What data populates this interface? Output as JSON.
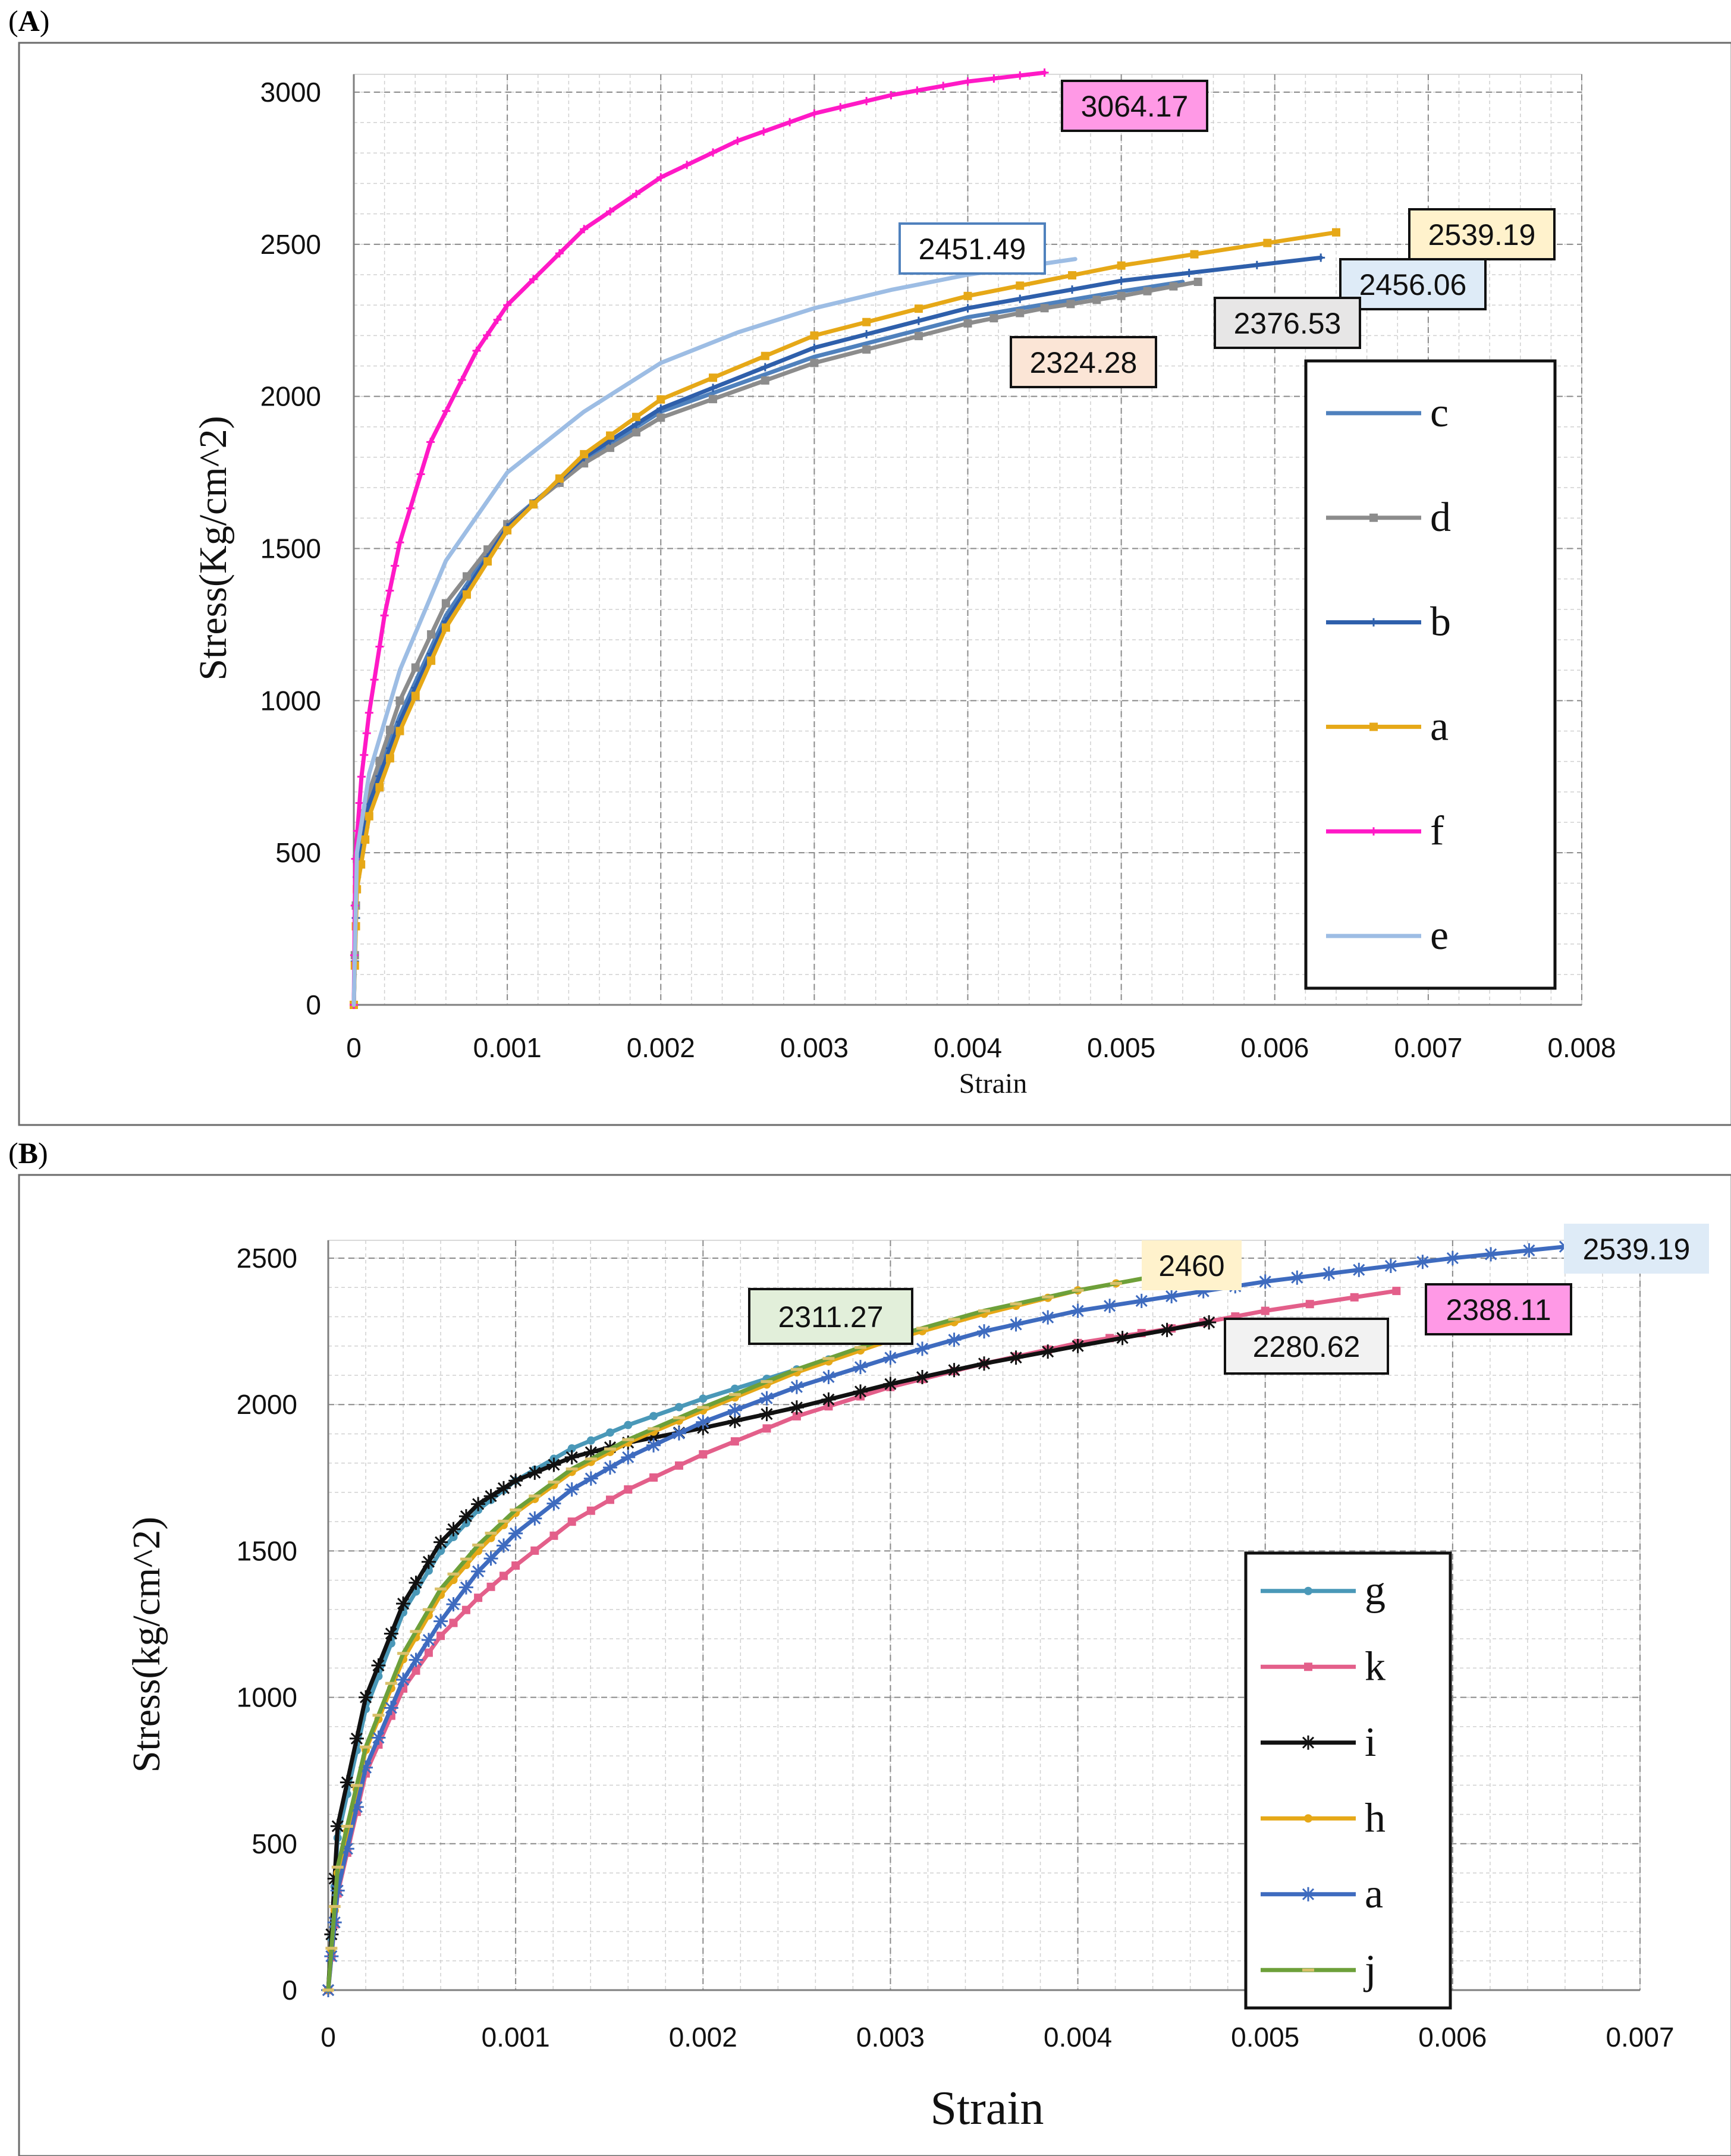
{
  "chart_data": [
    {
      "panel_label": "A",
      "type": "line",
      "xlabel": "Strain",
      "ylabel": "Stress(Kg/cm^2)",
      "xlim": [
        0,
        0.008
      ],
      "ylim": [
        0,
        3000
      ],
      "xticks": [
        "0",
        "0.001",
        "0.002",
        "0.003",
        "0.004",
        "0.005",
        "0.006",
        "0.007",
        "0.008"
      ],
      "yticks": [
        "0",
        "500",
        "1000",
        "1500",
        "2000",
        "2500",
        "3000"
      ],
      "xtick_values": [
        0,
        0.001,
        0.002,
        0.003,
        0.004,
        0.005,
        0.006,
        0.007,
        0.008
      ],
      "ytick_values": [
        0,
        500,
        1000,
        1500,
        2000,
        2500,
        3000
      ],
      "grid": true,
      "legend_position": "right",
      "legend": [
        "c",
        "d",
        "b",
        "a",
        "f",
        "e"
      ],
      "series": [
        {
          "name": "c",
          "color": "#4f81bd",
          "marker": "none",
          "final_stress": 2376.53,
          "final_strain": 0.0054,
          "x": [
            0,
            2e-05,
            0.0001,
            0.0003,
            0.0006,
            0.001,
            0.0015,
            0.002,
            0.003,
            0.004,
            0.005,
            0.0054
          ],
          "y": [
            0,
            450,
            680,
            950,
            1280,
            1580,
            1790,
            1950,
            2130,
            2260,
            2345,
            2376.53
          ]
        },
        {
          "name": "d",
          "color": "#8c8c8c",
          "marker": "square",
          "final_stress": 2376.53,
          "final_strain": 0.0055,
          "x": [
            0,
            2e-05,
            0.0001,
            0.0003,
            0.0006,
            0.001,
            0.0015,
            0.002,
            0.003,
            0.004,
            0.0045,
            0.005,
            0.0055
          ],
          "y": [
            0,
            480,
            700,
            1000,
            1320,
            1580,
            1780,
            1930,
            2110,
            2240,
            2290,
            2330,
            2376.53
          ]
        },
        {
          "name": "b",
          "color": "#2e5fab",
          "marker": "plus",
          "final_stress": 2456.06,
          "final_strain": 0.0063,
          "x": [
            0,
            2e-05,
            0.0001,
            0.0003,
            0.0006,
            0.001,
            0.0015,
            0.002,
            0.003,
            0.004,
            0.005,
            0.0063
          ],
          "y": [
            0,
            420,
            660,
            930,
            1260,
            1570,
            1800,
            1960,
            2160,
            2290,
            2380,
            2456.06
          ]
        },
        {
          "name": "a",
          "color": "#e6a817",
          "marker": "square",
          "final_stress": 2539.19,
          "final_strain": 0.0064,
          "x": [
            0,
            2e-05,
            0.0001,
            0.0003,
            0.0006,
            0.001,
            0.0015,
            0.002,
            0.003,
            0.004,
            0.005,
            0.0064
          ],
          "y": [
            0,
            380,
            620,
            900,
            1240,
            1560,
            1810,
            1990,
            2200,
            2330,
            2430,
            2539.19
          ]
        },
        {
          "name": "f",
          "color": "#ff19c6",
          "marker": "plus",
          "final_stress": 3064.17,
          "final_strain": 0.0045,
          "x": [
            0,
            1e-05,
            5e-05,
            0.0001,
            0.0002,
            0.0003,
            0.0005,
            0.0008,
            0.001,
            0.0015,
            0.002,
            0.0025,
            0.003,
            0.0035,
            0.004,
            0.0045
          ],
          "y": [
            0,
            480,
            750,
            960,
            1280,
            1520,
            1850,
            2150,
            2300,
            2550,
            2720,
            2840,
            2930,
            2990,
            3035,
            3064.17
          ]
        },
        {
          "name": "e",
          "color": "#9dbde4",
          "marker": "none",
          "final_stress": 2451.49,
          "final_strain": 0.0047,
          "x": [
            0,
            2e-05,
            0.0001,
            0.0003,
            0.0006,
            0.001,
            0.0015,
            0.002,
            0.0025,
            0.003,
            0.0035,
            0.004,
            0.0047
          ],
          "y": [
            0,
            500,
            760,
            1100,
            1460,
            1750,
            1950,
            2110,
            2210,
            2290,
            2350,
            2400,
            2451.49
          ]
        }
      ],
      "annotations": [
        {
          "text": "3064.17",
          "fill": "#ff99e6",
          "border": "#111111",
          "anchor_x": 0.0047,
          "anchor_y": 3060
        },
        {
          "text": "2539.19",
          "fill": "#fff2cc",
          "border": "#111111",
          "anchor_x": 0.0069,
          "anchor_y": 2620
        },
        {
          "text": "2451.49",
          "fill": "#ffffff",
          "border": "#4f81bd",
          "anchor_x": 0.0036,
          "anchor_y": 2560
        },
        {
          "text": "2456.06",
          "fill": "#deebf7",
          "border": "#111111",
          "anchor_x": 0.0065,
          "anchor_y": 2440
        },
        {
          "text": "2376.53",
          "fill": "#e7e6e6",
          "border": "#111111",
          "anchor_x": 0.0056,
          "anchor_y": 2300
        },
        {
          "text": "2324.28",
          "fill": "#fbe5d6",
          "border": "#111111",
          "anchor_x": 0.0041,
          "anchor_y": 2180
        }
      ]
    },
    {
      "panel_label": "B",
      "type": "line",
      "xlabel": "Strain",
      "ylabel": "Stress(kg/cm^2)",
      "xlim": [
        0,
        0.007
      ],
      "ylim": [
        0,
        2500
      ],
      "xticks": [
        "0",
        "0.001",
        "0.002",
        "0.003",
        "0.004",
        "0.005",
        "0.006",
        "0.007"
      ],
      "yticks": [
        "0",
        "500",
        "1000",
        "1500",
        "2000",
        "2500"
      ],
      "xtick_values": [
        0,
        0.001,
        0.002,
        0.003,
        0.004,
        0.005,
        0.006,
        0.007
      ],
      "ytick_values": [
        0,
        500,
        1000,
        1500,
        2000,
        2500
      ],
      "grid": true,
      "legend_position": "bottom-right",
      "legend": [
        "g",
        "k",
        "i",
        "h",
        "a",
        "j"
      ],
      "series": [
        {
          "name": "g",
          "color": "#4a98b8",
          "marker": "dot",
          "final_stress": 2311.27,
          "final_strain": 0.0035,
          "x": [
            0,
            5e-05,
            0.0002,
            0.0004,
            0.0006,
            0.0008,
            0.001,
            0.0013,
            0.0016,
            0.002,
            0.0025,
            0.003,
            0.0035
          ],
          "y": [
            0,
            520,
            960,
            1290,
            1500,
            1640,
            1740,
            1850,
            1930,
            2020,
            2120,
            2220,
            2311.27
          ]
        },
        {
          "name": "k",
          "color": "#e35f8a",
          "marker": "square",
          "final_stress": 2388.11,
          "final_strain": 0.0057,
          "x": [
            0,
            5e-05,
            0.0002,
            0.0004,
            0.0006,
            0.0008,
            0.001,
            0.0013,
            0.0016,
            0.002,
            0.0025,
            0.003,
            0.0035,
            0.004,
            0.0045,
            0.005,
            0.0057
          ],
          "y": [
            0,
            330,
            740,
            1030,
            1210,
            1340,
            1450,
            1600,
            1710,
            1830,
            1960,
            2060,
            2140,
            2210,
            2260,
            2320,
            2388.11
          ]
        },
        {
          "name": "i",
          "color": "#111111",
          "marker": "star",
          "final_stress": 2280.62,
          "final_strain": 0.0047,
          "x": [
            0,
            5e-05,
            0.0002,
            0.0004,
            0.0006,
            0.0008,
            0.001,
            0.0013,
            0.0016,
            0.002,
            0.0025,
            0.003,
            0.0035,
            0.004,
            0.0047
          ],
          "y": [
            0,
            560,
            1000,
            1320,
            1530,
            1660,
            1740,
            1820,
            1870,
            1920,
            1990,
            2070,
            2140,
            2200,
            2280.62
          ]
        },
        {
          "name": "h",
          "color": "#e6a817",
          "marker": "dot",
          "final_stress": 2460,
          "final_strain": 0.0046,
          "x": [
            0,
            5e-05,
            0.0002,
            0.0004,
            0.0006,
            0.0008,
            0.001,
            0.0013,
            0.0016,
            0.002,
            0.0025,
            0.003,
            0.0035,
            0.004,
            0.0046
          ],
          "y": [
            0,
            400,
            820,
            1130,
            1350,
            1500,
            1630,
            1770,
            1870,
            1980,
            2110,
            2220,
            2310,
            2390,
            2460
          ]
        },
        {
          "name": "a",
          "color": "#3e6bbf",
          "marker": "star",
          "final_stress": 2539.19,
          "final_strain": 0.0066,
          "x": [
            0,
            5e-05,
            0.0002,
            0.0004,
            0.0006,
            0.0008,
            0.001,
            0.0013,
            0.0016,
            0.002,
            0.0025,
            0.003,
            0.0035,
            0.004,
            0.0045,
            0.005,
            0.0055,
            0.006,
            0.0066
          ],
          "y": [
            0,
            340,
            760,
            1060,
            1260,
            1430,
            1560,
            1710,
            1820,
            1940,
            2060,
            2160,
            2250,
            2320,
            2370,
            2420,
            2460,
            2500,
            2539.19
          ]
        },
        {
          "name": "j",
          "color": "#6da03a",
          "marker": "dash",
          "final_stress": 2460,
          "final_strain": 0.0046,
          "x": [
            0,
            5e-05,
            0.0002,
            0.0004,
            0.0006,
            0.0008,
            0.001,
            0.0013,
            0.0016,
            0.002,
            0.0025,
            0.003,
            0.0035,
            0.004,
            0.0046
          ],
          "y": [
            0,
            420,
            830,
            1150,
            1370,
            1520,
            1640,
            1780,
            1880,
            1990,
            2120,
            2230,
            2320,
            2390,
            2460
          ]
        }
      ],
      "annotations": [
        {
          "text": "2539.19",
          "fill": "#deebf7",
          "border": "none",
          "anchor_x": 0.0066,
          "anchor_y": 2539
        },
        {
          "text": "2460",
          "fill": "#fff2cc",
          "border": "none",
          "anchor_x": 0.0046,
          "anchor_y": 2460
        },
        {
          "text": "2388.11",
          "fill": "#ff99e6",
          "border": "#111111",
          "anchor_x": 0.0057,
          "anchor_y": 2388
        },
        {
          "text": "2311.27",
          "fill": "#e2efda",
          "border": "#111111",
          "anchor_x": 0.0035,
          "anchor_y": 2311
        },
        {
          "text": "2280.62",
          "fill": "#f2f2f2",
          "border": "#111111",
          "anchor_x": 0.0047,
          "anchor_y": 2280
        }
      ]
    }
  ]
}
